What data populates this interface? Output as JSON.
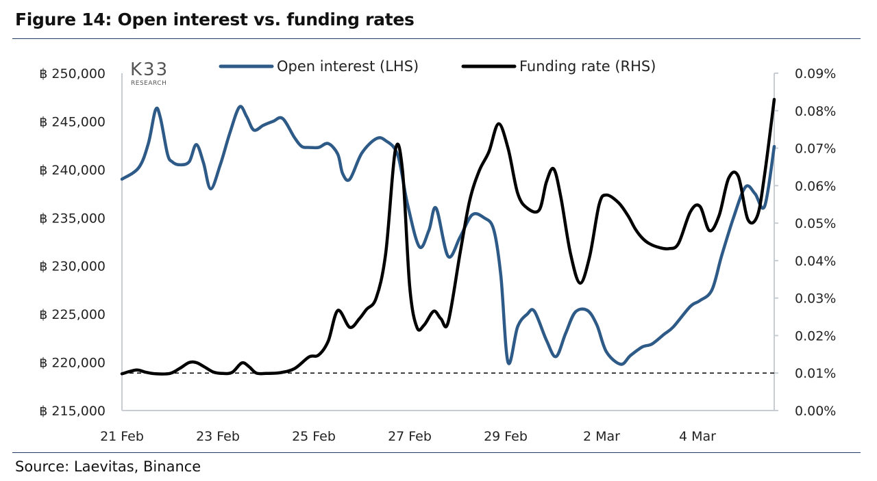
{
  "title": "Figure 14: Open interest vs. funding rates",
  "source": "Source: Laevitas, Binance",
  "logo": {
    "main": "K33",
    "sub": "RESEARCH"
  },
  "colors": {
    "open_interest": "#2e5a87",
    "funding_rate": "#000000",
    "rule": "#1f3b63",
    "axis": "#c8cdd3"
  },
  "chart_data": {
    "type": "line",
    "legend": [
      "Open interest (LHS)",
      "Funding rate (RHS)"
    ],
    "legend_position": "top-center",
    "grid": false,
    "x_tick_labels": [
      "21 Feb",
      "23 Feb",
      "25 Feb",
      "27 Feb",
      "29 Feb",
      "2 Mar",
      "4 Mar"
    ],
    "xlim": [
      0,
      13.6
    ],
    "left_axis": {
      "ylim": [
        215000,
        250000
      ],
      "tick_values": [
        215000,
        220000,
        225000,
        230000,
        235000,
        240000,
        245000,
        250000
      ],
      "tick_labels": [
        "฿ 215,000",
        "฿ 220,000",
        "฿ 225,000",
        "฿ 230,000",
        "฿ 235,000",
        "฿ 240,000",
        "฿ 245,000",
        "฿ 250,000"
      ]
    },
    "right_axis": {
      "ylim": [
        0.0,
        0.09
      ],
      "tick_values": [
        0.0,
        0.01,
        0.02,
        0.03,
        0.04,
        0.05,
        0.06,
        0.07,
        0.08,
        0.09
      ],
      "tick_labels": [
        "0.00%",
        "0.01%",
        "0.02%",
        "0.03%",
        "0.04%",
        "0.05%",
        "0.06%",
        "0.07%",
        "0.08%",
        "0.09%"
      ]
    },
    "reference_line": {
      "axis": "right",
      "value": 0.01,
      "style": "dashed"
    },
    "series": [
      {
        "name": "Open interest (LHS)",
        "axis": "left",
        "x": [
          0,
          0.35,
          0.55,
          0.7,
          0.8,
          0.95,
          1.05,
          1.2,
          1.4,
          1.55,
          1.7,
          1.85,
          2.05,
          2.25,
          2.45,
          2.6,
          2.75,
          2.95,
          3.15,
          3.35,
          3.6,
          3.75,
          3.9,
          4.1,
          4.3,
          4.5,
          4.6,
          4.75,
          5.0,
          5.3,
          5.5,
          5.75,
          5.95,
          6.2,
          6.4,
          6.55,
          6.8,
          7.05,
          7.3,
          7.55,
          7.75,
          7.9,
          8.05,
          8.25,
          8.45,
          8.6,
          8.85,
          9.05,
          9.25,
          9.45,
          9.7,
          9.9,
          10.1,
          10.4,
          10.6,
          10.85,
          11.05,
          11.3,
          11.5,
          11.85,
          12.05,
          12.3,
          12.5,
          12.75,
          13.0,
          13.2,
          13.4,
          13.6
        ],
        "values": [
          239000,
          240200,
          242700,
          246200,
          245400,
          241600,
          240800,
          240500,
          240800,
          242600,
          240700,
          238000,
          240500,
          243800,
          246500,
          245500,
          244100,
          244600,
          245000,
          245300,
          243300,
          242400,
          242300,
          242300,
          242700,
          241600,
          239600,
          239000,
          241700,
          243200,
          243000,
          241500,
          236500,
          232000,
          233700,
          236000,
          231000,
          233000,
          235300,
          235000,
          233800,
          229000,
          220000,
          223700,
          225000,
          225300,
          222300,
          220600,
          223000,
          225200,
          225400,
          223900,
          221100,
          219800,
          220700,
          221600,
          221900,
          222900,
          223700,
          225800,
          226400,
          227500,
          231000,
          235000,
          238200,
          237500,
          236200,
          242400
        ]
      },
      {
        "name": "Funding rate (RHS)",
        "axis": "right",
        "x": [
          0,
          0.3,
          0.5,
          0.7,
          1.0,
          1.2,
          1.4,
          1.55,
          1.7,
          1.9,
          2.1,
          2.3,
          2.5,
          2.65,
          2.8,
          3.0,
          3.3,
          3.6,
          3.9,
          4.1,
          4.3,
          4.5,
          4.75,
          4.95,
          5.1,
          5.3,
          5.5,
          5.7,
          5.85,
          6.0,
          6.15,
          6.3,
          6.5,
          6.65,
          6.8,
          7.05,
          7.25,
          7.45,
          7.65,
          7.85,
          8.05,
          8.25,
          8.45,
          8.7,
          8.85,
          9.0,
          9.15,
          9.35,
          9.55,
          9.75,
          9.95,
          10.1,
          10.35,
          10.55,
          10.7,
          10.85,
          11.0,
          11.2,
          11.4,
          11.6,
          11.85,
          12.05,
          12.25,
          12.45,
          12.65,
          12.85,
          13.05,
          13.25,
          13.4,
          13.6
        ],
        "values": [
          0.0098,
          0.0108,
          0.0102,
          0.0098,
          0.0099,
          0.0112,
          0.0128,
          0.0128,
          0.0118,
          0.0103,
          0.0099,
          0.0102,
          0.0127,
          0.0117,
          0.01,
          0.0099,
          0.0101,
          0.0112,
          0.0143,
          0.0148,
          0.0185,
          0.0267,
          0.0222,
          0.0245,
          0.027,
          0.03,
          0.042,
          0.0695,
          0.064,
          0.033,
          0.0222,
          0.0228,
          0.0265,
          0.0245,
          0.0235,
          0.042,
          0.056,
          0.064,
          0.069,
          0.0765,
          0.07,
          0.058,
          0.054,
          0.0535,
          0.061,
          0.0645,
          0.057,
          0.042,
          0.034,
          0.041,
          0.055,
          0.0575,
          0.0555,
          0.052,
          0.0485,
          0.046,
          0.0445,
          0.0435,
          0.0432,
          0.0445,
          0.053,
          0.0545,
          0.048,
          0.052,
          0.062,
          0.0625,
          0.051,
          0.052,
          0.063,
          0.083
        ]
      }
    ]
  }
}
